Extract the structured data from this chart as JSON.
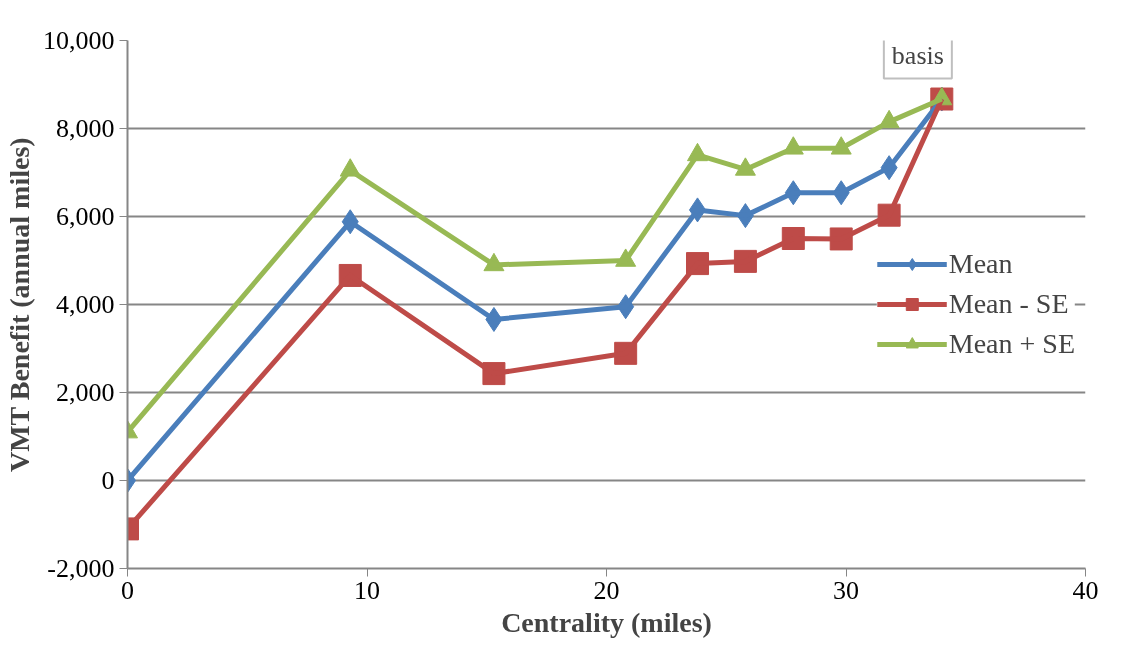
{
  "chart_data": {
    "type": "line",
    "xlabel": "Centrality (miles)",
    "ylabel": "VMT Benefit (annual miles)",
    "x": [
      0,
      9.3,
      15.3,
      20.8,
      23.8,
      25.8,
      27.8,
      29.8,
      31.8,
      34.0
    ],
    "series": [
      {
        "name": "Mean",
        "color": "#4a7ebb",
        "marker": "diamond",
        "values": [
          0,
          5880,
          3660,
          3950,
          6150,
          6020,
          6540,
          6540,
          7110,
          8670
        ]
      },
      {
        "name": "Mean - SE",
        "color": "#be4b48",
        "marker": "square",
        "values": [
          -1100,
          4660,
          2430,
          2890,
          4930,
          4980,
          5500,
          5490,
          6030,
          8670
        ]
      },
      {
        "name": "Mean + SE",
        "color": "#98b954",
        "marker": "triangle",
        "values": [
          1100,
          7050,
          4900,
          5000,
          7400,
          7070,
          7550,
          7550,
          8150,
          8670
        ]
      }
    ],
    "xlim": [
      0,
      40
    ],
    "xticks": [
      0,
      10,
      20,
      30,
      40
    ],
    "ylim": [
      -2000,
      10000
    ],
    "yticks": [
      {
        "value": -2000,
        "label": "-2,000"
      },
      0,
      {
        "value": 2000,
        "label": "2,000"
      },
      {
        "value": 4000,
        "label": "4,000"
      },
      {
        "value": 6000,
        "label": "6,000"
      },
      {
        "value": 8000,
        "label": "8,000"
      },
      {
        "value": 10000,
        "label": "10,000"
      }
    ],
    "grid": "y",
    "legend": "right",
    "line_style": "solid",
    "annotations": [
      "basis"
    ]
  }
}
